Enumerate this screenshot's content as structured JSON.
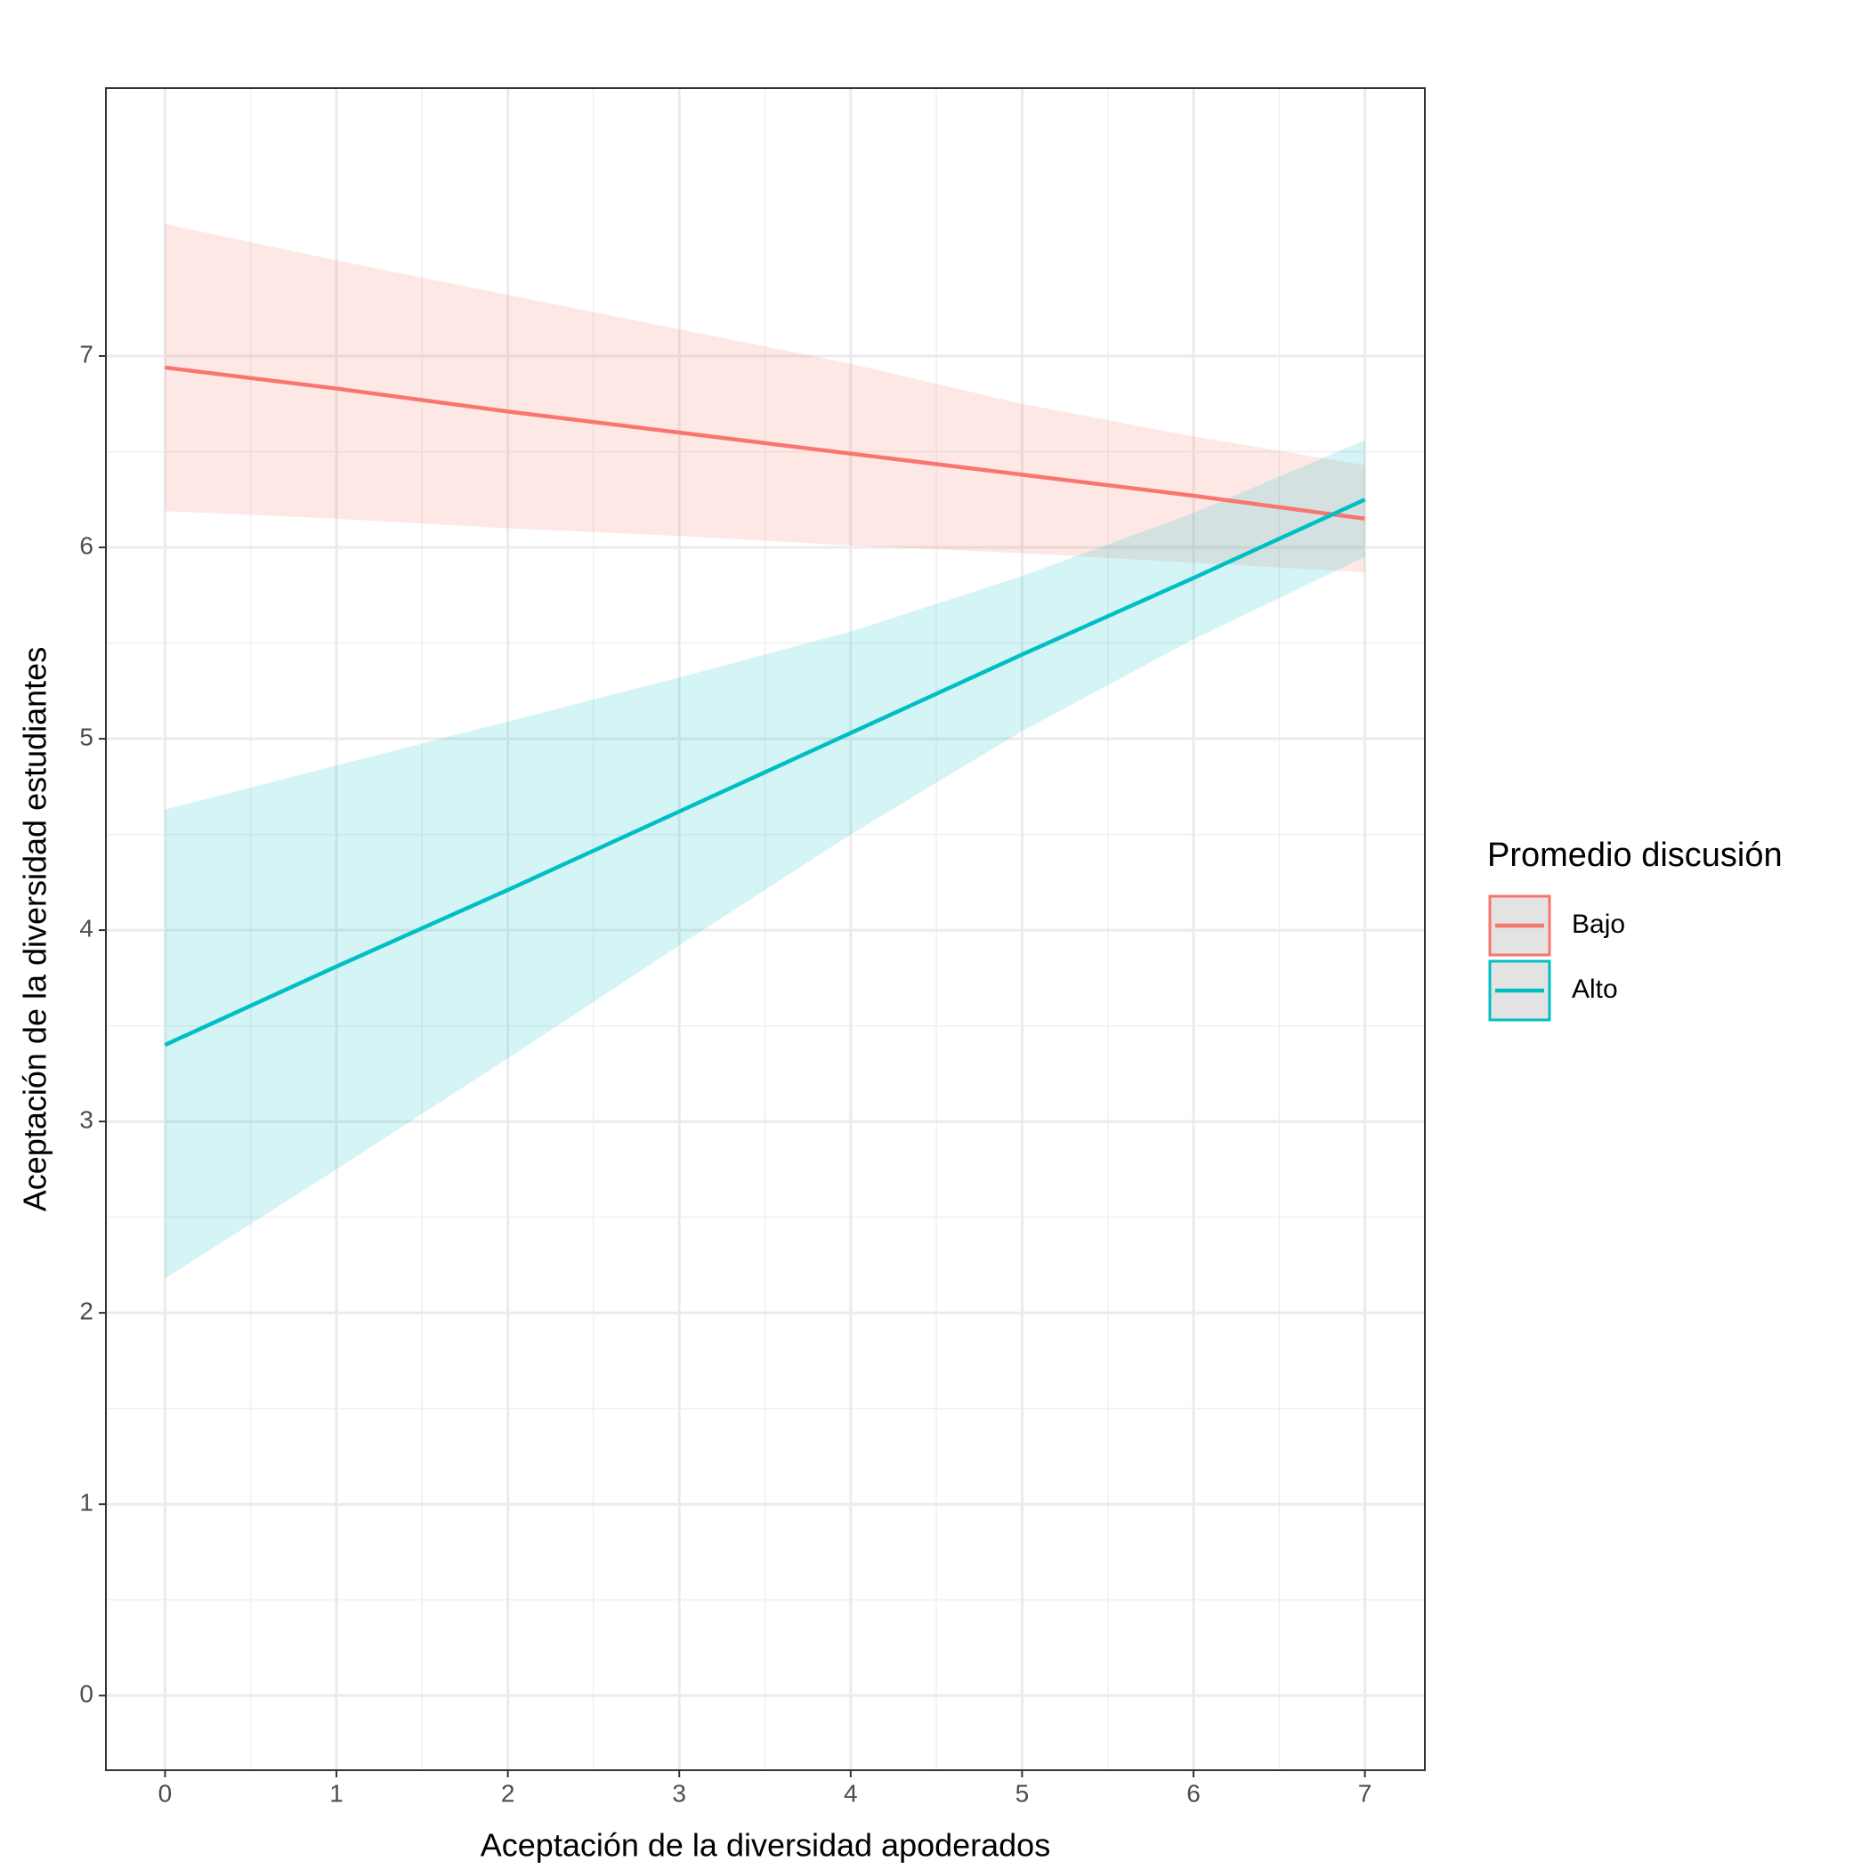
{
  "chart_data": {
    "type": "line",
    "x_label": "Aceptación de la diversidad apoderados",
    "y_label": "Aceptación de la diversidad estudiantes",
    "legend_title": "Promedio discusión",
    "x": [
      0,
      1,
      2,
      3,
      4,
      5,
      6,
      7
    ],
    "series": [
      {
        "name": "Bajo",
        "color": "#f8766d",
        "values": [
          6.94,
          6.83,
          6.71,
          6.6,
          6.49,
          6.38,
          6.27,
          6.15
        ],
        "upper": [
          7.69,
          7.5,
          7.32,
          7.14,
          6.96,
          6.75,
          6.58,
          6.43
        ],
        "lower": [
          6.19,
          6.15,
          6.1,
          6.06,
          6.01,
          5.97,
          5.92,
          5.87
        ]
      },
      {
        "name": "Alto",
        "color": "#00bfc4",
        "values": [
          3.4,
          3.81,
          4.21,
          4.62,
          5.03,
          5.44,
          5.84,
          6.25
        ],
        "upper": [
          4.63,
          4.86,
          5.09,
          5.32,
          5.56,
          5.85,
          6.18,
          6.56
        ],
        "lower": [
          2.18,
          2.75,
          3.33,
          3.92,
          4.5,
          5.04,
          5.52,
          5.95
        ]
      }
    ],
    "xlim": [
      -0.345,
      7.35
    ],
    "ylim": [
      -0.39,
      8.4
    ],
    "xticks": [
      0,
      1,
      2,
      3,
      4,
      5,
      6,
      7
    ],
    "yticks": [
      0,
      1,
      2,
      3,
      4,
      5,
      6,
      7
    ],
    "grid": true,
    "legend_position": "right"
  }
}
